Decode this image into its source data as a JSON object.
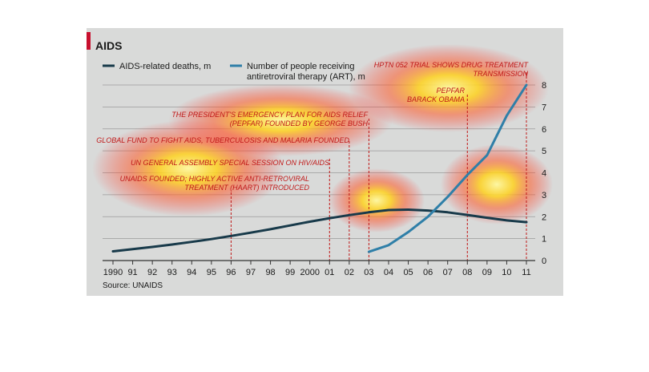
{
  "colors": {
    "panel": "#d9dad9",
    "deaths": "#183a4a",
    "art": "#2f7fa8",
    "accent": "#c8102e",
    "annotation": "#c01818"
  },
  "chart_data": {
    "type": "line",
    "title": "AIDS",
    "source": "Source: UNAIDS",
    "x_tick_labels": [
      "1990",
      "91",
      "92",
      "93",
      "94",
      "95",
      "96",
      "97",
      "98",
      "99",
      "2000",
      "01",
      "02",
      "03",
      "04",
      "05",
      "06",
      "07",
      "08",
      "09",
      "10",
      "11"
    ],
    "x": [
      1990,
      1991,
      1992,
      1993,
      1994,
      1995,
      1996,
      1997,
      1998,
      1999,
      2000,
      2001,
      2002,
      2003,
      2004,
      2005,
      2006,
      2007,
      2008,
      2009,
      2010,
      2011
    ],
    "ylim": [
      0,
      8
    ],
    "y_ticks": [
      0,
      1,
      2,
      3,
      4,
      5,
      6,
      7,
      8
    ],
    "y_axis_side": "right",
    "grid": true,
    "legend_position": "top-left",
    "series": [
      {
        "name": "AIDS-related deaths, m",
        "color": "#183a4a",
        "x": [
          1990,
          1991,
          1992,
          1993,
          1994,
          1995,
          1996,
          1997,
          1998,
          1999,
          2000,
          2001,
          2002,
          2003,
          2004,
          2005,
          2006,
          2007,
          2008,
          2009,
          2010,
          2011
        ],
        "values": [
          0.42,
          0.52,
          0.62,
          0.73,
          0.85,
          0.98,
          1.12,
          1.27,
          1.43,
          1.6,
          1.77,
          1.93,
          2.07,
          2.2,
          2.3,
          2.32,
          2.28,
          2.2,
          2.08,
          1.95,
          1.83,
          1.75
        ]
      },
      {
        "name": "Number of people receiving antiretroviral therapy (ART), m",
        "color": "#2f7fa8",
        "x": [
          2003,
          2004,
          2005,
          2006,
          2007,
          2008,
          2009,
          2010,
          2011
        ],
        "values": [
          0.4,
          0.7,
          1.3,
          2.0,
          2.9,
          3.9,
          4.8,
          6.6,
          8.0
        ]
      }
    ],
    "legend": [
      {
        "lines": [
          "AIDS-related deaths, m"
        ]
      },
      {
        "lines": [
          "Number of people receiving",
          "antiretroviral therapy (ART), m"
        ]
      }
    ],
    "annotations": [
      {
        "x": 1996,
        "lines": [
          "UNAIDS FOUNDED; HIGHLY ACTIVE ANTI-RETROVIRAL",
          "TREATMENT (HAART) INTRODUCED"
        ]
      },
      {
        "x": 2001,
        "lines": [
          "UN GENERAL ASSEMBLY SPECIAL SESSION ON HIV/AIDS"
        ]
      },
      {
        "x": 2002,
        "lines": [
          "GLOBAL FUND TO FIGHT AIDS, TUBERCULOSIS AND MALARIA FOUNDED"
        ]
      },
      {
        "x": 2003,
        "lines": [
          "THE PRESIDENT'S EMERGENCY PLAN FOR AIDS RELIEF",
          "(PEPFAR) FOUNDED BY GEORGE BUSH"
        ]
      },
      {
        "x": 2008,
        "lines": [
          "PEPFAR",
          "BARACK OBAMA"
        ]
      },
      {
        "x": 2011,
        "lines": [
          "HPTN 052 TRIAL SHOWS DRUG TREATMENT",
          "TRANSMISSION"
        ]
      }
    ]
  }
}
